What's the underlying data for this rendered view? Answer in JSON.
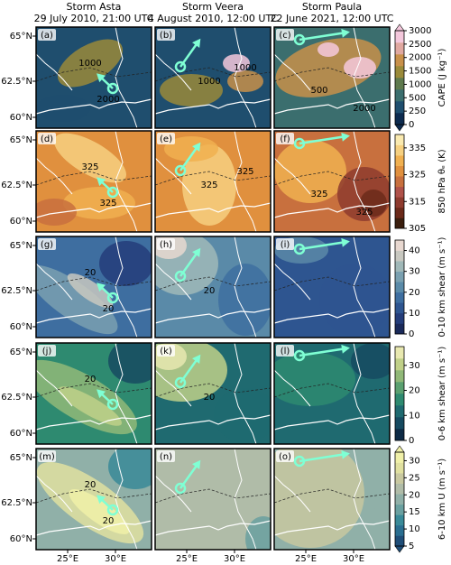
{
  "columns": [
    {
      "storm": "Storm Asta",
      "time": "29 July 2010, 21:00 UTC"
    },
    {
      "storm": "Storm Veera",
      "time": "4 August 2010, 12:00 UTC"
    },
    {
      "storm": "Storm Paula",
      "time": "22 June 2021, 12:00 UTC"
    }
  ],
  "lat_ticks": [
    "65°N",
    "62.5°N",
    "60°N"
  ],
  "lon_ticks": [
    "25°E",
    "30°E"
  ],
  "rows": [
    {
      "panels": [
        "(a)",
        "(b)",
        "(c)"
      ],
      "colorbar": {
        "label": "CAPE (J kg⁻¹)",
        "ticks": [
          0,
          250,
          500,
          1000,
          1500,
          2000,
          2500,
          3000
        ],
        "spacing": "uniform",
        "extend": "both",
        "colors": [
          "#0d2b4f",
          "#1f4e6e",
          "#3b6e6e",
          "#5f7a4e",
          "#9a8a3a",
          "#c8904a",
          "#e0a8a0",
          "#f4c8dc"
        ]
      },
      "contour_labels": [
        [
          "1000",
          "2000"
        ],
        [
          "1000",
          "1000"
        ],
        [
          "500",
          "2000"
        ]
      ]
    },
    {
      "panels": [
        "(d)",
        "(e)",
        "(f)"
      ],
      "colorbar": {
        "label": "850 hPa θₑ (K)",
        "ticks": [
          305,
          315,
          325,
          335
        ],
        "lim": [
          305,
          340
        ],
        "colors": [
          "#3a1e0e",
          "#6b2a1a",
          "#8e3b2e",
          "#b0524a",
          "#c8703e",
          "#e0903e",
          "#f0b050",
          "#f6d080",
          "#faeab0"
        ]
      },
      "contour_labels": [
        [
          "325",
          "325"
        ],
        [
          "325",
          "325"
        ],
        [
          "325",
          "325"
        ]
      ]
    },
    {
      "panels": [
        "(g)",
        "(h)",
        "(i)"
      ],
      "colorbar": {
        "label": "0-10 km shear (m s⁻¹)",
        "ticks": [
          0,
          10,
          20,
          30,
          40
        ],
        "lim": [
          0,
          45
        ],
        "colors": [
          "#1a2a5a",
          "#243d7a",
          "#2e5590",
          "#3e6ea0",
          "#5a8aa8",
          "#7aa0b0",
          "#a0b8b8",
          "#c8c8c0",
          "#e8d8d0"
        ]
      },
      "contour_labels": [
        [
          "20",
          "20"
        ],
        [
          "20"
        ],
        []
      ]
    },
    {
      "panels": [
        "(j)",
        "(k)",
        "(l)"
      ],
      "colorbar": {
        "label": "0-6 km shear (m s⁻¹)",
        "ticks": [
          0,
          10,
          20,
          30
        ],
        "lim": [
          0,
          37.5
        ],
        "colors": [
          "#0d2a45",
          "#164a60",
          "#1f6a70",
          "#2e8a70",
          "#5aa070",
          "#90b878",
          "#c0d088",
          "#e8e8b0"
        ]
      },
      "contour_labels": [
        [
          "20"
        ],
        [
          "20"
        ],
        []
      ]
    },
    {
      "panels": [
        "(m)",
        "(n)",
        "(o)"
      ],
      "colorbar": {
        "label": "6-10 km U (m s⁻¹)",
        "ticks": [
          5,
          10,
          15,
          20,
          25,
          30
        ],
        "lim": [
          5,
          32.5
        ],
        "extend": "both",
        "colors": [
          "#1f4e78",
          "#2a6e90",
          "#3a8a98",
          "#6aa0a0",
          "#90b0a8",
          "#b0bca8",
          "#c8c8a0",
          "#e0e0a0",
          "#f0f0a8"
        ]
      },
      "contour_labels": [
        [
          "20",
          "20"
        ],
        [],
        []
      ]
    }
  ]
}
